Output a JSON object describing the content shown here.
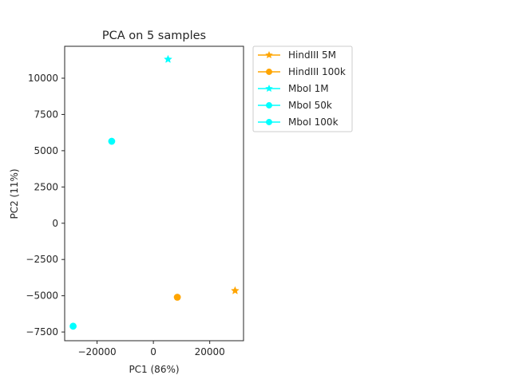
{
  "chart_data": {
    "type": "scatter",
    "title": "PCA on 5 samples",
    "xlabel": "PC1 (86%)",
    "ylabel": "PC2 (11%)",
    "xlim": [
      -31500,
      32000
    ],
    "ylim": [
      -8100,
      12200
    ],
    "xticks": [
      -20000,
      0,
      20000
    ],
    "xtick_labels": [
      "−20000",
      "0",
      "20000"
    ],
    "yticks": [
      -7500,
      -5000,
      -2500,
      0,
      2500,
      5000,
      7500,
      10000
    ],
    "ytick_labels": [
      "−7500",
      "−5000",
      "−2500",
      "0",
      "2500",
      "5000",
      "7500",
      "10000"
    ],
    "grid": false,
    "legend_position": "outside-upper-right",
    "series": [
      {
        "name": "HindIII 5M",
        "color": "#FFA500",
        "marker": "star",
        "x": 29000,
        "y": -4650
      },
      {
        "name": "HindIII 100k",
        "color": "#FFA500",
        "marker": "circle",
        "x": 8500,
        "y": -5100
      },
      {
        "name": "MboI 1M",
        "color": "#00FFFF",
        "marker": "star",
        "x": 5200,
        "y": 11300
      },
      {
        "name": "MboI 50k",
        "color": "#00FFFF",
        "marker": "circle",
        "x": -28500,
        "y": -7100
      },
      {
        "name": "MboI 100k",
        "color": "#00FFFF",
        "marker": "circle",
        "x": -14800,
        "y": 5650
      }
    ]
  }
}
